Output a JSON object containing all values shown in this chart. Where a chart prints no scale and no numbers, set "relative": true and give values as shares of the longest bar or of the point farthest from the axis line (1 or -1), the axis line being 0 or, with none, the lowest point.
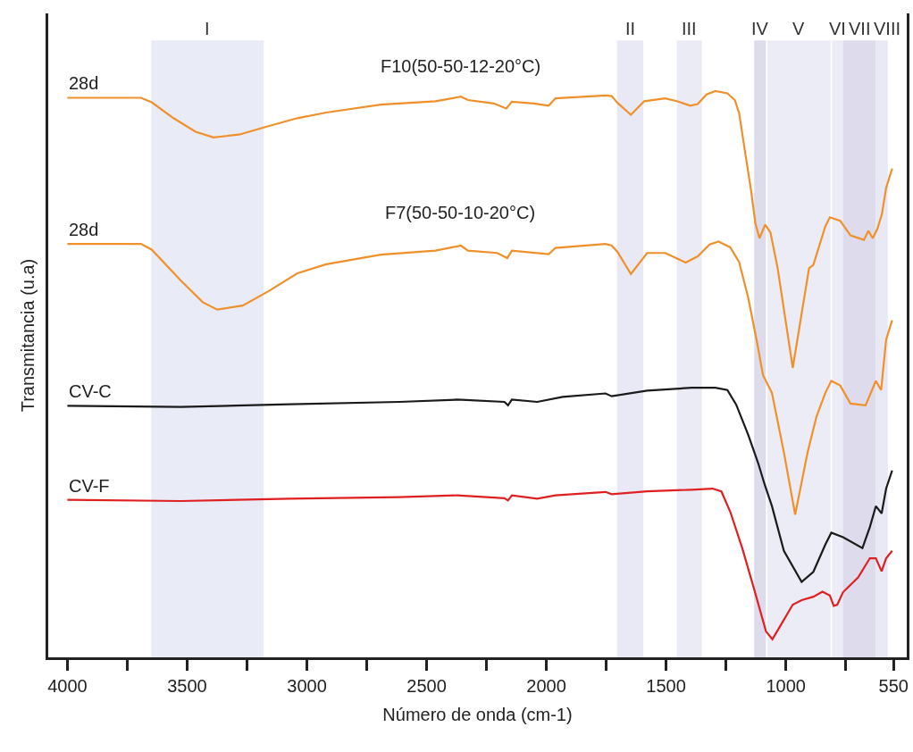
{
  "chart_data": {
    "type": "line",
    "relative": true,
    "xlabel": "Número de onda (cm-1)",
    "ylabel": "Transmitancia (u.a)",
    "xlim": [
      4080,
      495
    ],
    "xticks": [
      4000,
      {
        "value": 3750,
        "label": null
      },
      3500,
      {
        "value": 3250,
        "label": null
      },
      3000,
      {
        "value": 2750,
        "label": null
      },
      2500,
      {
        "value": 2250,
        "label": null
      },
      2000,
      {
        "value": 1750,
        "label": null
      },
      1500,
      {
        "value": 1250,
        "label": null
      },
      1000,
      {
        "value": 750,
        "label": null
      },
      550
    ],
    "grid": false,
    "legend": false,
    "series": [
      {
        "name": "28d",
        "color": "#f0902a",
        "x": [
          4000,
          3693,
          3648,
          3557,
          3465,
          3390,
          3283,
          3177,
          3040,
          2919,
          2691,
          2463,
          2357,
          2327,
          2220,
          2167,
          2144,
          2053,
          1990,
          1962,
          1753,
          1727,
          1703,
          1647,
          1591,
          1504,
          1455,
          1399,
          1368,
          1331,
          1294,
          1244,
          1213,
          1195,
          1170,
          1145,
          1127,
          1110,
          1086,
          1064,
          1034,
          971,
          903,
          885,
          835,
          816,
          773,
          730,
          674,
          655,
          637,
          618,
          599,
          581,
          556
        ],
        "values": [
          0.988,
          0.988,
          0.98,
          0.952,
          0.928,
          0.918,
          0.923,
          0.936,
          0.952,
          0.962,
          0.976,
          0.982,
          0.99,
          0.984,
          0.978,
          0.969,
          0.981,
          0.978,
          0.974,
          0.987,
          0.992,
          0.991,
          0.979,
          0.958,
          0.982,
          0.987,
          0.982,
          0.974,
          0.977,
          0.994,
          1.0,
          0.996,
          0.984,
          0.961,
          0.892,
          0.824,
          0.766,
          0.74,
          0.764,
          0.75,
          0.687,
          0.511,
          0.687,
          0.693,
          0.761,
          0.777,
          0.771,
          0.745,
          0.737,
          0.753,
          0.74,
          0.756,
          0.782,
          0.829,
          0.863
        ]
      },
      {
        "name": "28d",
        "color": "#f0902a",
        "x": [
          4000,
          3693,
          3648,
          3526,
          3435,
          3374,
          3268,
          3162,
          3040,
          2919,
          2691,
          2463,
          2357,
          2327,
          2205,
          2163,
          2144,
          1990,
          1962,
          1753,
          1727,
          1703,
          1647,
          1579,
          1504,
          1418,
          1368,
          1318,
          1281,
          1232,
          1195,
          1157,
          1120,
          1095,
          1058,
          1008,
          961,
          909,
          872,
          835,
          810,
          773,
          730,
          667,
          624,
          602,
          581,
          556
        ],
        "values": [
          0.73,
          0.73,
          0.72,
          0.665,
          0.627,
          0.614,
          0.621,
          0.646,
          0.678,
          0.694,
          0.711,
          0.718,
          0.727,
          0.718,
          0.714,
          0.705,
          0.718,
          0.712,
          0.723,
          0.73,
          0.727,
          0.716,
          0.677,
          0.714,
          0.714,
          0.697,
          0.708,
          0.729,
          0.734,
          0.724,
          0.698,
          0.635,
          0.556,
          0.498,
          0.467,
          0.362,
          0.252,
          0.362,
          0.425,
          0.467,
          0.488,
          0.48,
          0.448,
          0.445,
          0.488,
          0.472,
          0.561,
          0.595
        ]
      },
      {
        "name": "CV-C",
        "color": "#1a1a1a",
        "x": [
          4000,
          3526,
          3071,
          2615,
          2372,
          2175,
          2160,
          2144,
          2038,
          1932,
          1753,
          1727,
          1579,
          1393,
          1294,
          1244,
          1207,
          1157,
          1114,
          1089,
          1058,
          1008,
          934,
          885,
          835,
          810,
          761,
          680,
          649,
          624,
          600,
          581,
          556
        ],
        "values": [
          0.444,
          0.442,
          0.447,
          0.451,
          0.455,
          0.451,
          0.445,
          0.455,
          0.451,
          0.46,
          0.466,
          0.461,
          0.471,
          0.476,
          0.476,
          0.472,
          0.446,
          0.393,
          0.341,
          0.306,
          0.267,
          0.188,
          0.133,
          0.151,
          0.199,
          0.22,
          0.212,
          0.193,
          0.23,
          0.267,
          0.254,
          0.298,
          0.33
        ]
      },
      {
        "name": "CV-F",
        "color": "#e02020",
        "x": [
          4000,
          3526,
          3071,
          2615,
          2372,
          2175,
          2160,
          2144,
          2038,
          1962,
          1753,
          1727,
          1579,
          1393,
          1306,
          1269,
          1232,
          1182,
          1132,
          1083,
          1056,
          1021,
          971,
          934,
          885,
          847,
          816,
          800,
          785,
          761,
          698,
          649,
          624,
          600,
          581,
          556
        ],
        "values": [
          0.278,
          0.276,
          0.28,
          0.283,
          0.286,
          0.281,
          0.277,
          0.286,
          0.28,
          0.286,
          0.292,
          0.288,
          0.293,
          0.296,
          0.298,
          0.293,
          0.257,
          0.193,
          0.12,
          0.046,
          0.032,
          0.057,
          0.093,
          0.101,
          0.107,
          0.116,
          0.109,
          0.091,
          0.093,
          0.115,
          0.141,
          0.175,
          0.175,
          0.152,
          0.175,
          0.188
        ]
      }
    ],
    "bands": [
      {
        "axis": "x",
        "from": 3650,
        "to": 3180,
        "label": "I",
        "color": "#e9ebf7"
      },
      {
        "axis": "x",
        "from": 1705,
        "to": 1595,
        "label": "II",
        "color": "#e9e9f5"
      },
      {
        "axis": "x",
        "from": 1455,
        "to": 1350,
        "label": "III",
        "color": "#ebebf6"
      },
      {
        "axis": "x",
        "from": 1132,
        "to": 1083,
        "label": "IV",
        "color": "#dcdcec"
      },
      {
        "axis": "x",
        "from": 1077,
        "to": 813,
        "label": "V",
        "color": "#ececf6"
      },
      {
        "axis": "x",
        "from": 807,
        "to": 762,
        "label": "VI",
        "color": "#ececf6"
      },
      {
        "axis": "x",
        "from": 762,
        "to": 624,
        "label": "VII",
        "color": "#dedcec"
      },
      {
        "axis": "x",
        "from": 624,
        "to": 574,
        "label": "VIII",
        "color": "#e9e9f5"
      }
    ],
    "annotations": [
      "F10(50-50-12-20°C)",
      "F7(50-50-10-20°C)"
    ]
  }
}
